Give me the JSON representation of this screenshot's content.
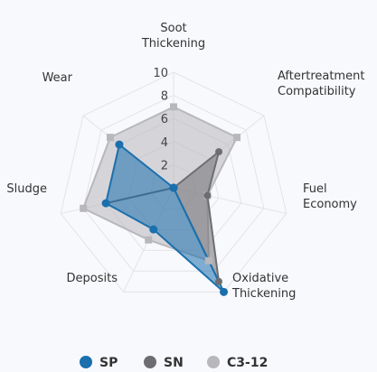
{
  "chart_data": {
    "type": "radar",
    "axes": [
      [
        "Soot",
        "Thickening"
      ],
      [
        "Aftertreatment",
        "Compatibility"
      ],
      [
        "Fuel",
        "Economy"
      ],
      [
        "Oxidative",
        "Thickening"
      ],
      [
        "Deposits"
      ],
      [
        "Sludge"
      ],
      [
        "Wear"
      ]
    ],
    "rlim": [
      0,
      10
    ],
    "ticks": [
      "2",
      "4",
      "6",
      "8",
      "10"
    ],
    "tick_values": [
      2,
      4,
      6,
      8,
      10
    ],
    "grid": true,
    "legend_position": "bottom",
    "series": [
      {
        "name": "SP",
        "values": [
          0,
          0,
          0,
          10,
          4,
          6,
          6
        ],
        "color": "#1a6fad"
      },
      {
        "name": "SN",
        "values": [
          0,
          5,
          3,
          9,
          0,
          6,
          0
        ],
        "color": "#6e6e72"
      },
      {
        "name": "C3-12",
        "values": [
          7,
          7,
          3,
          7,
          5,
          8,
          7
        ],
        "color": "#b8b8bc"
      }
    ]
  }
}
